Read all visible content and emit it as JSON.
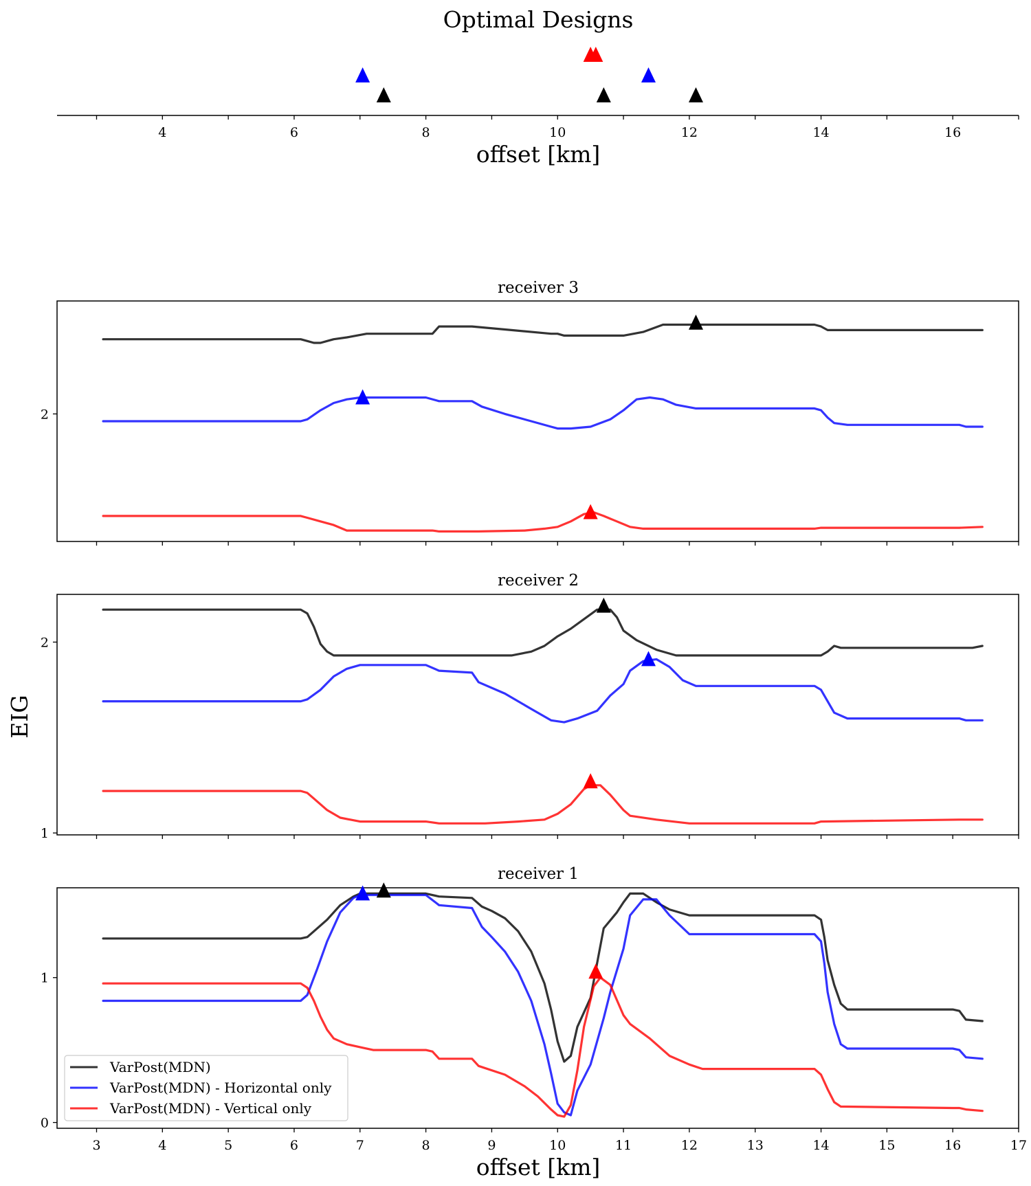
{
  "chart_data": [
    {
      "type": "scatter",
      "title": "Optimal Designs",
      "xlabel": "offset [km]",
      "xlim": [
        2.4,
        17.0
      ],
      "xticks": [
        4,
        6,
        8,
        10,
        12,
        14,
        16
      ],
      "series": [
        {
          "color": "#ff0000",
          "x": [
            10.5,
            10.58
          ],
          "level": 3
        },
        {
          "color": "#0000ff",
          "x": [
            7.04,
            11.38
          ],
          "level": 2
        },
        {
          "color": "#000000",
          "x": [
            7.36,
            10.7,
            12.1
          ],
          "level": 1
        }
      ]
    },
    {
      "type": "line",
      "title": "receiver 3",
      "xlim": [
        2.4,
        17.0
      ],
      "ylim": [
        1.3,
        2.62
      ],
      "yticks": [
        2
      ],
      "series": [
        {
          "color": "#000000",
          "x": [
            3.1,
            6.1,
            6.2,
            6.3,
            6.4,
            6.5,
            6.6,
            6.8,
            7.1,
            7.2,
            8.1,
            8.2,
            8.7,
            9.3,
            9.9,
            10.0,
            10.1,
            10.3,
            10.6,
            11.0,
            11.3,
            11.6,
            12.1,
            13.9,
            14.0,
            14.1,
            14.3,
            16.1,
            16.2,
            16.45
          ],
          "y": [
            2.41,
            2.41,
            2.4,
            2.39,
            2.39,
            2.4,
            2.41,
            2.42,
            2.44,
            2.44,
            2.44,
            2.48,
            2.48,
            2.46,
            2.44,
            2.44,
            2.43,
            2.43,
            2.43,
            2.43,
            2.45,
            2.49,
            2.49,
            2.49,
            2.48,
            2.46,
            2.46,
            2.46,
            2.46,
            2.46
          ]
        },
        {
          "color": "#0000ff",
          "x": [
            3.1,
            6.1,
            6.2,
            6.4,
            6.6,
            6.8,
            7.0,
            7.2,
            8.0,
            8.2,
            8.7,
            8.85,
            9.2,
            9.6,
            9.9,
            10.0,
            10.2,
            10.5,
            10.8,
            11.0,
            11.2,
            11.4,
            11.6,
            11.8,
            12.1,
            13.9,
            14.0,
            14.1,
            14.2,
            14.4,
            16.1,
            16.2,
            16.45
          ],
          "y": [
            1.96,
            1.96,
            1.97,
            2.02,
            2.06,
            2.08,
            2.09,
            2.09,
            2.09,
            2.07,
            2.07,
            2.04,
            2.0,
            1.96,
            1.93,
            1.92,
            1.92,
            1.93,
            1.97,
            2.02,
            2.08,
            2.09,
            2.08,
            2.05,
            2.03,
            2.03,
            2.02,
            1.98,
            1.95,
            1.94,
            1.94,
            1.93,
            1.93
          ]
        },
        {
          "color": "#ff0000",
          "x": [
            3.1,
            6.1,
            6.2,
            6.4,
            6.6,
            6.8,
            7.2,
            8.1,
            8.2,
            8.8,
            9.5,
            9.8,
            10.0,
            10.2,
            10.4,
            10.55,
            10.7,
            10.9,
            11.1,
            11.3,
            13.9,
            14.0,
            16.1,
            16.45
          ],
          "y": [
            1.44,
            1.44,
            1.43,
            1.41,
            1.39,
            1.36,
            1.36,
            1.36,
            1.355,
            1.355,
            1.36,
            1.37,
            1.38,
            1.41,
            1.45,
            1.46,
            1.44,
            1.41,
            1.38,
            1.37,
            1.37,
            1.375,
            1.375,
            1.38
          ]
        }
      ],
      "markers": [
        {
          "color": "#000000",
          "x": 12.1,
          "y": 2.5
        },
        {
          "color": "#0000ff",
          "x": 7.04,
          "y": 2.09
        },
        {
          "color": "#ff0000",
          "x": 10.5,
          "y": 1.46
        }
      ]
    },
    {
      "type": "line",
      "title": "receiver 2",
      "ylabel": "EIG",
      "xlim": [
        2.4,
        17.0
      ],
      "ylim": [
        0.99,
        2.25
      ],
      "yticks": [
        1,
        2
      ],
      "series": [
        {
          "color": "#000000",
          "x": [
            3.1,
            6.1,
            6.2,
            6.3,
            6.4,
            6.5,
            6.6,
            6.8,
            7.0,
            8.0,
            8.1,
            8.7,
            8.8,
            9.3,
            9.6,
            9.8,
            10.0,
            10.2,
            10.4,
            10.6,
            10.8,
            10.9,
            11.0,
            11.2,
            11.5,
            11.8,
            11.9,
            12.0,
            13.9,
            14.0,
            14.1,
            14.2,
            14.3,
            16.1,
            16.3,
            16.45
          ],
          "y": [
            2.17,
            2.17,
            2.15,
            2.08,
            1.99,
            1.95,
            1.93,
            1.93,
            1.93,
            1.93,
            1.93,
            1.93,
            1.93,
            1.93,
            1.95,
            1.98,
            2.03,
            2.07,
            2.12,
            2.17,
            2.17,
            2.13,
            2.06,
            2.01,
            1.96,
            1.93,
            1.93,
            1.93,
            1.93,
            1.93,
            1.95,
            1.98,
            1.97,
            1.97,
            1.97,
            1.98
          ]
        },
        {
          "color": "#0000ff",
          "x": [
            3.1,
            6.1,
            6.2,
            6.4,
            6.6,
            6.8,
            7.0,
            8.0,
            8.2,
            8.7,
            8.8,
            9.2,
            9.6,
            9.9,
            10.1,
            10.3,
            10.6,
            10.8,
            11.0,
            11.1,
            11.3,
            11.5,
            11.7,
            11.9,
            12.1,
            13.9,
            14.0,
            14.1,
            14.2,
            14.4,
            16.1,
            16.2,
            16.45
          ],
          "y": [
            1.69,
            1.69,
            1.7,
            1.75,
            1.82,
            1.86,
            1.88,
            1.88,
            1.85,
            1.84,
            1.79,
            1.73,
            1.65,
            1.59,
            1.58,
            1.6,
            1.64,
            1.72,
            1.78,
            1.85,
            1.9,
            1.91,
            1.87,
            1.8,
            1.77,
            1.77,
            1.75,
            1.69,
            1.63,
            1.6,
            1.6,
            1.59,
            1.59
          ]
        },
        {
          "color": "#ff0000",
          "x": [
            3.1,
            6.1,
            6.2,
            6.3,
            6.5,
            6.7,
            7.0,
            8.0,
            8.2,
            8.9,
            9.4,
            9.8,
            10.0,
            10.2,
            10.4,
            10.5,
            10.65,
            10.8,
            11.0,
            11.1,
            11.5,
            12.0,
            13.9,
            14.0,
            16.1,
            16.45
          ],
          "y": [
            1.22,
            1.22,
            1.21,
            1.18,
            1.12,
            1.08,
            1.06,
            1.06,
            1.05,
            1.05,
            1.06,
            1.07,
            1.1,
            1.15,
            1.23,
            1.25,
            1.25,
            1.2,
            1.12,
            1.09,
            1.07,
            1.05,
            1.05,
            1.06,
            1.07,
            1.07
          ]
        }
      ],
      "markers": [
        {
          "color": "#000000",
          "x": 10.7,
          "y": 2.19
        },
        {
          "color": "#0000ff",
          "x": 11.38,
          "y": 1.91
        },
        {
          "color": "#ff0000",
          "x": 10.5,
          "y": 1.27
        }
      ]
    },
    {
      "type": "line",
      "title": "receiver 1",
      "xlabel": "offset [km]",
      "xlim": [
        2.4,
        17.0
      ],
      "ylim": [
        -0.04,
        1.62
      ],
      "yticks": [
        0,
        1
      ],
      "xticks": [
        3,
        4,
        5,
        6,
        7,
        8,
        9,
        10,
        11,
        12,
        13,
        14,
        15,
        16,
        17
      ],
      "series": [
        {
          "color": "#000000",
          "name": "VarPost(MDN)",
          "x": [
            3.1,
            6.1,
            6.2,
            6.3,
            6.5,
            6.7,
            6.9,
            7.0,
            8.0,
            8.2,
            8.7,
            8.85,
            9.0,
            9.2,
            9.4,
            9.6,
            9.8,
            9.9,
            10.0,
            10.1,
            10.2,
            10.3,
            10.5,
            10.7,
            10.9,
            11.0,
            11.1,
            11.3,
            11.5,
            11.7,
            12.0,
            13.9,
            14.0,
            14.05,
            14.1,
            14.2,
            14.3,
            14.4,
            16.0,
            16.1,
            16.2,
            16.45
          ],
          "y": [
            1.27,
            1.27,
            1.28,
            1.32,
            1.4,
            1.5,
            1.56,
            1.58,
            1.58,
            1.56,
            1.55,
            1.49,
            1.46,
            1.41,
            1.32,
            1.18,
            0.96,
            0.78,
            0.56,
            0.42,
            0.46,
            0.66,
            0.86,
            1.34,
            1.45,
            1.52,
            1.58,
            1.58,
            1.52,
            1.47,
            1.43,
            1.43,
            1.4,
            1.28,
            1.12,
            0.95,
            0.82,
            0.78,
            0.78,
            0.77,
            0.71,
            0.7
          ]
        },
        {
          "color": "#0000ff",
          "name": "VarPost(MDN) - Horizontal only",
          "x": [
            3.1,
            6.1,
            6.2,
            6.35,
            6.5,
            6.7,
            6.9,
            7.0,
            8.0,
            8.2,
            8.7,
            8.85,
            9.0,
            9.2,
            9.4,
            9.6,
            9.8,
            9.9,
            10.0,
            10.1,
            10.2,
            10.3,
            10.5,
            10.7,
            10.8,
            11.0,
            11.1,
            11.3,
            11.5,
            11.7,
            12.0,
            13.9,
            14.0,
            14.05,
            14.1,
            14.2,
            14.3,
            14.4,
            16.0,
            16.1,
            16.2,
            16.45
          ],
          "y": [
            0.84,
            0.84,
            0.88,
            1.06,
            1.25,
            1.45,
            1.55,
            1.57,
            1.57,
            1.5,
            1.48,
            1.35,
            1.28,
            1.18,
            1.04,
            0.84,
            0.54,
            0.34,
            0.13,
            0.07,
            0.05,
            0.22,
            0.4,
            0.72,
            0.9,
            1.2,
            1.43,
            1.54,
            1.54,
            1.43,
            1.3,
            1.3,
            1.25,
            1.1,
            0.9,
            0.68,
            0.54,
            0.51,
            0.51,
            0.5,
            0.45,
            0.44
          ]
        },
        {
          "color": "#ff0000",
          "name": "VarPost(MDN) - Vertical only",
          "x": [
            3.1,
            6.1,
            6.2,
            6.3,
            6.4,
            6.5,
            6.6,
            6.8,
            7.0,
            7.2,
            8.0,
            8.1,
            8.2,
            8.7,
            8.8,
            9.2,
            9.5,
            9.7,
            9.9,
            10.0,
            10.1,
            10.2,
            10.3,
            10.4,
            10.55,
            10.65,
            10.8,
            11.0,
            11.1,
            11.4,
            11.7,
            12.0,
            12.2,
            13.9,
            14.0,
            14.1,
            14.2,
            14.3,
            16.0,
            16.1,
            16.2,
            16.45
          ],
          "y": [
            0.96,
            0.96,
            0.93,
            0.84,
            0.73,
            0.64,
            0.58,
            0.54,
            0.52,
            0.5,
            0.5,
            0.49,
            0.44,
            0.44,
            0.39,
            0.33,
            0.25,
            0.18,
            0.09,
            0.05,
            0.04,
            0.12,
            0.36,
            0.66,
            0.94,
            1.0,
            0.95,
            0.74,
            0.68,
            0.58,
            0.46,
            0.4,
            0.37,
            0.37,
            0.33,
            0.23,
            0.14,
            0.11,
            0.1,
            0.1,
            0.09,
            0.08
          ]
        }
      ],
      "markers": [
        {
          "color": "#000000",
          "x": 7.36,
          "y": 1.6
        },
        {
          "color": "#0000ff",
          "x": 7.04,
          "y": 1.58
        },
        {
          "color": "#ff0000",
          "x": 10.58,
          "y": 1.04
        }
      ],
      "legend": {
        "placement": "lower-left"
      }
    }
  ]
}
